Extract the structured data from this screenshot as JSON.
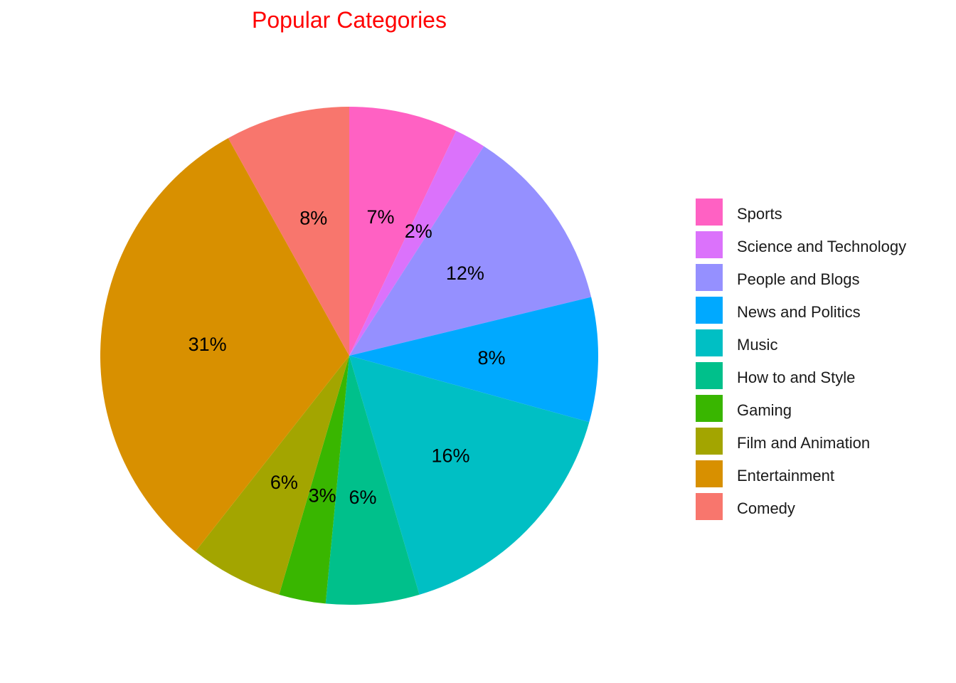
{
  "chart_data": {
    "type": "pie",
    "title": "Popular Categories",
    "start": "12 o'clock, clockwise",
    "slices": [
      {
        "name": "Sports",
        "value": 7,
        "label": "7%",
        "color": "#FF61C3"
      },
      {
        "name": "Science and Technology",
        "value": 2,
        "label": "2%",
        "color": "#DB72FB"
      },
      {
        "name": "People and Blogs",
        "value": 12,
        "label": "12%",
        "color": "#9590FF"
      },
      {
        "name": "News and Politics",
        "value": 8,
        "label": "8%",
        "color": "#00A9FF"
      },
      {
        "name": "Music",
        "value": 16,
        "label": "16%",
        "color": "#00BFC4"
      },
      {
        "name": "How to and Style",
        "value": 6,
        "label": "6%",
        "color": "#00C08B"
      },
      {
        "name": "Gaming",
        "value": 3,
        "label": "3%",
        "color": "#39B600"
      },
      {
        "name": "Film and Animation",
        "value": 6,
        "label": "6%",
        "color": "#A3A500"
      },
      {
        "name": "Entertainment",
        "value": 31,
        "label": "31%",
        "color": "#D89000"
      },
      {
        "name": "Comedy",
        "value": 8,
        "label": "8%",
        "color": "#F8766D"
      }
    ],
    "legend_position": "right"
  }
}
